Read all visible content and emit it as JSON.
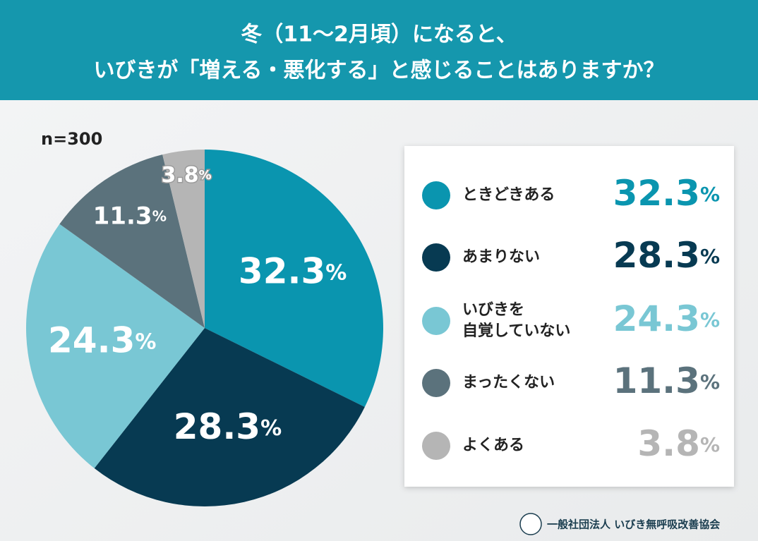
{
  "chart_data": {
    "type": "pie",
    "title": [
      "冬（11〜2月頃）になると、",
      "いびきが「増える・悪化する」と感じることはありますか？"
    ],
    "note": "n=300",
    "categories": [
      "ときどきある",
      "あまりない",
      "いびきを\n自覚していない",
      "まったくない",
      "よくある"
    ],
    "values": [
      32.3,
      28.3,
      24.3,
      11.3,
      3.8
    ],
    "value_labels": [
      "32.3%",
      "28.3%",
      "24.3%",
      "11.3%",
      "3.8%"
    ],
    "colors": [
      "#0a95af",
      "#073a52",
      "#79c7d4",
      "#5b727c",
      "#b5b5b5"
    ],
    "footer": "一般社団法人 いびき無呼吸改善協会"
  }
}
